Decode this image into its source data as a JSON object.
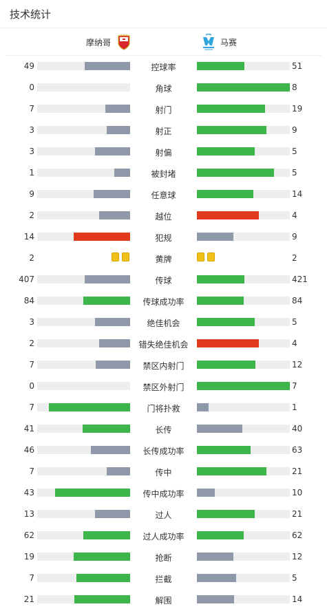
{
  "header": {
    "title": "技术统计"
  },
  "teams": {
    "home": "摩纳哥",
    "away": "马赛"
  },
  "colors": {
    "gray": "#8f99aa",
    "green": "#3cb54a",
    "red": "#e0391e",
    "track": "#eeeeee",
    "yellow_card": "#f2c118"
  },
  "stats": [
    {
      "label": "控球率",
      "home": "49",
      "away": "51",
      "home_fill": 0.49,
      "away_fill": 0.51,
      "home_color": "gray",
      "away_color": "green"
    },
    {
      "label": "角球",
      "home": "0",
      "away": "8",
      "home_fill": 0,
      "away_fill": 1.0,
      "home_color": "gray",
      "away_color": "green"
    },
    {
      "label": "射门",
      "home": "7",
      "away": "19",
      "home_fill": 0.27,
      "away_fill": 0.73,
      "home_color": "gray",
      "away_color": "green"
    },
    {
      "label": "射正",
      "home": "3",
      "away": "9",
      "home_fill": 0.25,
      "away_fill": 0.75,
      "home_color": "gray",
      "away_color": "green"
    },
    {
      "label": "射偏",
      "home": "3",
      "away": "5",
      "home_fill": 0.38,
      "away_fill": 0.62,
      "home_color": "gray",
      "away_color": "green"
    },
    {
      "label": "被封堵",
      "home": "1",
      "away": "5",
      "home_fill": 0.17,
      "away_fill": 0.83,
      "home_color": "gray",
      "away_color": "green"
    },
    {
      "label": "任意球",
      "home": "9",
      "away": "14",
      "home_fill": 0.39,
      "away_fill": 0.61,
      "home_color": "gray",
      "away_color": "green"
    },
    {
      "label": "越位",
      "home": "2",
      "away": "4",
      "home_fill": 0.33,
      "away_fill": 0.67,
      "home_color": "gray",
      "away_color": "red"
    },
    {
      "label": "犯规",
      "home": "14",
      "away": "9",
      "home_fill": 0.61,
      "away_fill": 0.39,
      "home_color": "red",
      "away_color": "gray"
    },
    {
      "label": "黄牌",
      "home": "2",
      "away": "2",
      "type": "cards",
      "home_cards": 2,
      "away_cards": 2
    },
    {
      "label": "传球",
      "home": "407",
      "away": "421",
      "home_fill": 0.49,
      "away_fill": 0.51,
      "home_color": "gray",
      "away_color": "green"
    },
    {
      "label": "传球成功率",
      "home": "84",
      "away": "84",
      "home_fill": 0.5,
      "away_fill": 0.5,
      "home_color": "green",
      "away_color": "green"
    },
    {
      "label": "绝佳机会",
      "home": "3",
      "away": "5",
      "home_fill": 0.38,
      "away_fill": 0.62,
      "home_color": "gray",
      "away_color": "green"
    },
    {
      "label": "错失绝佳机会",
      "home": "2",
      "away": "4",
      "home_fill": 0.33,
      "away_fill": 0.67,
      "home_color": "gray",
      "away_color": "red"
    },
    {
      "label": "禁区内射门",
      "home": "7",
      "away": "12",
      "home_fill": 0.37,
      "away_fill": 0.63,
      "home_color": "gray",
      "away_color": "green"
    },
    {
      "label": "禁区外射门",
      "home": "0",
      "away": "7",
      "home_fill": 0,
      "away_fill": 1.0,
      "home_color": "gray",
      "away_color": "green"
    },
    {
      "label": "门将扑救",
      "home": "7",
      "away": "1",
      "home_fill": 0.875,
      "away_fill": 0.125,
      "home_color": "green",
      "away_color": "gray"
    },
    {
      "label": "长传",
      "home": "41",
      "away": "40",
      "home_fill": 0.51,
      "away_fill": 0.49,
      "home_color": "green",
      "away_color": "gray"
    },
    {
      "label": "长传成功率",
      "home": "46",
      "away": "63",
      "home_fill": 0.42,
      "away_fill": 0.58,
      "home_color": "gray",
      "away_color": "green"
    },
    {
      "label": "传中",
      "home": "7",
      "away": "21",
      "home_fill": 0.25,
      "away_fill": 0.75,
      "home_color": "gray",
      "away_color": "green"
    },
    {
      "label": "传中成功率",
      "home": "43",
      "away": "10",
      "home_fill": 0.81,
      "away_fill": 0.19,
      "home_color": "green",
      "away_color": "gray"
    },
    {
      "label": "过人",
      "home": "13",
      "away": "21",
      "home_fill": 0.38,
      "away_fill": 0.62,
      "home_color": "gray",
      "away_color": "green"
    },
    {
      "label": "过人成功率",
      "home": "62",
      "away": "62",
      "home_fill": 0.5,
      "away_fill": 0.5,
      "home_color": "green",
      "away_color": "green"
    },
    {
      "label": "抢断",
      "home": "19",
      "away": "12",
      "home_fill": 0.61,
      "away_fill": 0.39,
      "home_color": "green",
      "away_color": "gray"
    },
    {
      "label": "拦截",
      "home": "7",
      "away": "5",
      "home_fill": 0.58,
      "away_fill": 0.42,
      "home_color": "green",
      "away_color": "gray"
    },
    {
      "label": "解围",
      "home": "21",
      "away": "14",
      "home_fill": 0.6,
      "away_fill": 0.4,
      "home_color": "green",
      "away_color": "gray"
    }
  ]
}
